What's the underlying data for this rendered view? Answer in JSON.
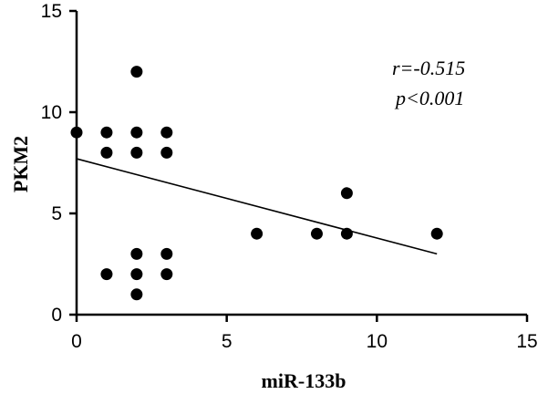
{
  "chart_data": {
    "type": "scatter",
    "xlabel": "miR-133b",
    "ylabel": "PKM2",
    "xlim": [
      0,
      15
    ],
    "ylim": [
      0,
      15
    ],
    "x_ticks": [
      "0",
      "5",
      "10",
      "15"
    ],
    "y_ticks": [
      "0",
      "5",
      "10",
      "15"
    ],
    "points": [
      {
        "x": 0,
        "y": 9
      },
      {
        "x": 1,
        "y": 9
      },
      {
        "x": 1,
        "y": 8
      },
      {
        "x": 1,
        "y": 2
      },
      {
        "x": 2,
        "y": 12
      },
      {
        "x": 2,
        "y": 9
      },
      {
        "x": 2,
        "y": 8
      },
      {
        "x": 2,
        "y": 3
      },
      {
        "x": 2,
        "y": 2
      },
      {
        "x": 2,
        "y": 1
      },
      {
        "x": 3,
        "y": 9
      },
      {
        "x": 3,
        "y": 8
      },
      {
        "x": 3,
        "y": 3
      },
      {
        "x": 3,
        "y": 2
      },
      {
        "x": 6,
        "y": 4
      },
      {
        "x": 8,
        "y": 4
      },
      {
        "x": 9,
        "y": 6
      },
      {
        "x": 9,
        "y": 4
      },
      {
        "x": 12,
        "y": 4
      }
    ],
    "fit_line": {
      "x": [
        0,
        12
      ],
      "y": [
        7.7,
        3.0
      ]
    },
    "annotations": [
      "r=-0.515",
      "p<0.001"
    ],
    "grid": false
  }
}
